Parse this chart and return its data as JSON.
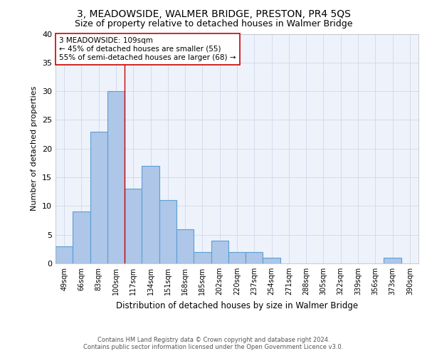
{
  "title": "3, MEADOWSIDE, WALMER BRIDGE, PRESTON, PR4 5QS",
  "subtitle": "Size of property relative to detached houses in Walmer Bridge",
  "xlabel": "Distribution of detached houses by size in Walmer Bridge",
  "ylabel": "Number of detached properties",
  "footer_line1": "Contains HM Land Registry data © Crown copyright and database right 2024.",
  "footer_line2": "Contains public sector information licensed under the Open Government Licence v3.0.",
  "categories": [
    "49sqm",
    "66sqm",
    "83sqm",
    "100sqm",
    "117sqm",
    "134sqm",
    "151sqm",
    "168sqm",
    "185sqm",
    "202sqm",
    "220sqm",
    "237sqm",
    "254sqm",
    "271sqm",
    "288sqm",
    "305sqm",
    "322sqm",
    "339sqm",
    "356sqm",
    "373sqm",
    "390sqm"
  ],
  "values": [
    3,
    9,
    23,
    30,
    13,
    17,
    11,
    6,
    2,
    4,
    2,
    2,
    1,
    0,
    0,
    0,
    0,
    0,
    0,
    1,
    0
  ],
  "bar_color": "#aec6e8",
  "bar_edgecolor": "#5a9fd4",
  "bar_linewidth": 0.8,
  "property_line_x": 3.5,
  "annotation_text_line1": "3 MEADOWSIDE: 109sqm",
  "annotation_text_line2": "← 45% of detached houses are smaller (55)",
  "annotation_text_line3": "55% of semi-detached houses are larger (68) →",
  "annotation_box_color": "#ffffff",
  "annotation_box_edgecolor": "#cc0000",
  "property_line_color": "#cc0000",
  "ylim": [
    0,
    40
  ],
  "yticks": [
    0,
    5,
    10,
    15,
    20,
    25,
    30,
    35,
    40
  ],
  "grid_color": "#d0d8e8",
  "background_color": "#eef2fb",
  "title_fontsize": 10,
  "subtitle_fontsize": 9
}
